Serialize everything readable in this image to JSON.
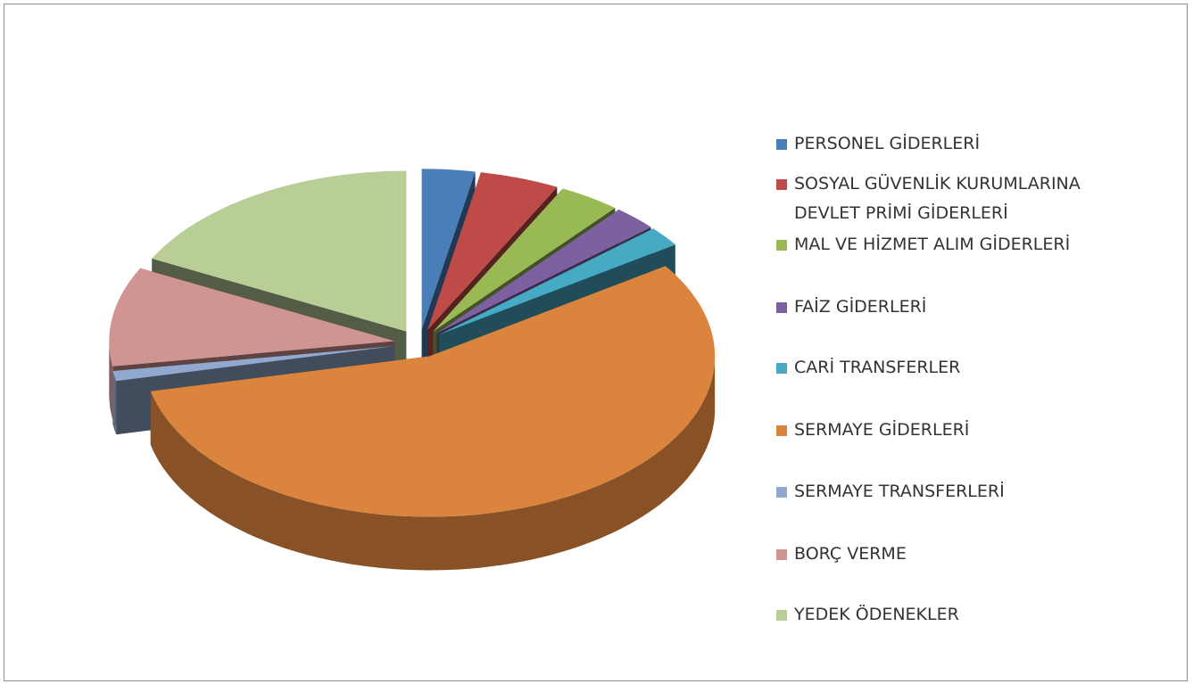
{
  "chart_data": {
    "type": "pie3d",
    "categories": [
      "PERSONEL GİDERLERİ",
      "SOSYAL GÜVENLİK KURUMLARINA DEVLET PRİMİ GİDERLERİ",
      "MAL VE HİZMET ALIM GİDERLERİ",
      "FAİZ GİDERLERİ",
      "CARİ TRANSFERLER",
      "SERMAYE GİDERLERİ",
      "SERMAYE TRANSFERLERİ",
      "BORÇ VERME",
      "YEDEK ÖDENEKLER"
    ],
    "values": [
      3,
      4.5,
      3.5,
      2.5,
      2,
      56,
      1,
      10,
      17.5
    ],
    "colors": [
      "#4a7ebb",
      "#be4b48",
      "#98b954",
      "#7d60a0",
      "#46aac5",
      "#db843d",
      "#92a9cf",
      "#d09493",
      "#b9cd96"
    ],
    "legend": "right"
  }
}
